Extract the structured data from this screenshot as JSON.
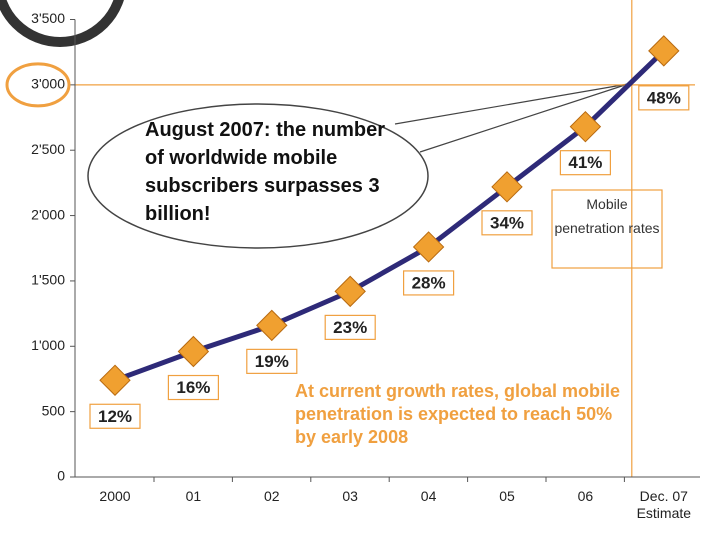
{
  "chart_data": {
    "type": "line",
    "categories": [
      "2000",
      "01",
      "02",
      "03",
      "04",
      "05",
      "06",
      "Dec. 07 Estimate"
    ],
    "series": [
      {
        "color": "#2e2a78",
        "marker_color": "#f0a030",
        "values": [
          740,
          960,
          1160,
          1420,
          1760,
          2220,
          2680,
          3260
        ]
      }
    ],
    "penetration_labels": [
      "12%",
      "16%",
      "19%",
      "23%",
      "28%",
      "34%",
      "41%",
      "48%"
    ],
    "penetration_box_title": "Mobile penetration rates",
    "callout": "August 2007: the number of worldwide mobile subscribers surpasses 3 billion!",
    "note": "At current growth rates, global mobile penetration is expected to reach 50% by early 2008",
    "highlight_y": 3000,
    "highlight_color": "#f0a040",
    "ylim": [
      0,
      3500
    ],
    "yticks": [
      0,
      500,
      {
        "value": 1000,
        "label": "1'000"
      },
      {
        "value": 1500,
        "label": "1'500"
      },
      {
        "value": 2000,
        "label": "2'000"
      },
      {
        "value": 2500,
        "label": "2'500"
      },
      {
        "value": 3000,
        "label": "3'000"
      },
      {
        "value": 3500,
        "label": "3'500"
      }
    ]
  }
}
